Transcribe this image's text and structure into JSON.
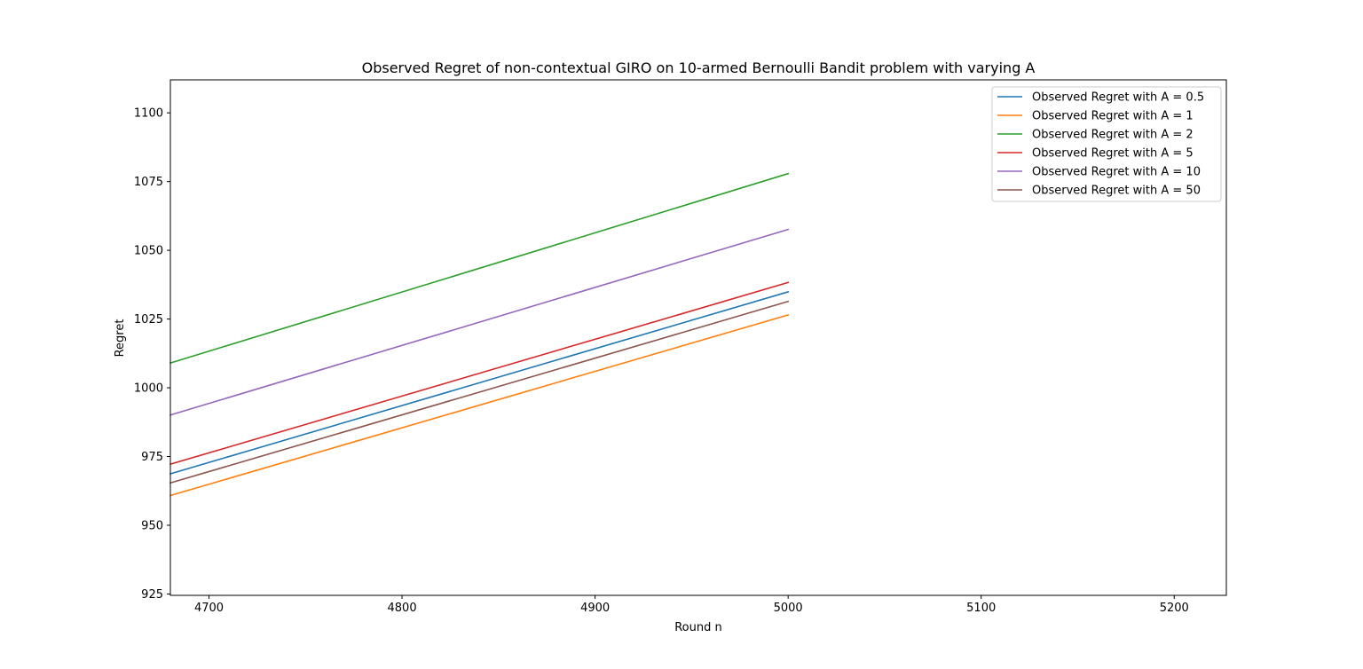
{
  "chart_data": {
    "type": "line",
    "title": "Observed Regret of non-contextual GIRO on 10-armed Bernoulli Bandit problem with varying A",
    "xlabel": "Round n",
    "ylabel": "Regret",
    "xlim": [
      4680,
      5227
    ],
    "ylim": [
      924.5,
      1112
    ],
    "xticks": [
      4700,
      4800,
      4900,
      5000,
      5100,
      5200
    ],
    "xtick_labels": [
      "4700",
      "4800",
      "4900",
      "5000",
      "5100",
      "5200"
    ],
    "yticks": [
      925,
      950,
      975,
      1000,
      1025,
      1050,
      1075,
      1100
    ],
    "ytick_labels": [
      "925",
      "950",
      "975",
      "1000",
      "1025",
      "1050",
      "1075",
      "1100"
    ],
    "grid": false,
    "legend_position": "top-right",
    "series": [
      {
        "name": "Observed Regret with A = 0.5",
        "color": "#1f77b4",
        "x": [
          4680,
          5000
        ],
        "y": [
          968.7,
          1034.9
        ]
      },
      {
        "name": "Observed Regret with A = 1",
        "color": "#ff7f0e",
        "x": [
          4680,
          5000
        ],
        "y": [
          960.8,
          1026.5
        ]
      },
      {
        "name": "Observed Regret with A = 2",
        "color": "#2ca02c",
        "x": [
          4680,
          5000
        ],
        "y": [
          1009.0,
          1077.9
        ]
      },
      {
        "name": "Observed Regret with A = 5",
        "color": "#d62728",
        "x": [
          4680,
          5000
        ],
        "y": [
          972.2,
          1038.3
        ]
      },
      {
        "name": "Observed Regret with A = 10",
        "color": "#9467bd",
        "x": [
          4680,
          5000
        ],
        "y": [
          990.1,
          1057.6
        ]
      },
      {
        "name": "Observed Regret with A = 50",
        "color": "#8c564b",
        "x": [
          4680,
          5000
        ],
        "y": [
          965.4,
          1031.4
        ]
      }
    ]
  }
}
